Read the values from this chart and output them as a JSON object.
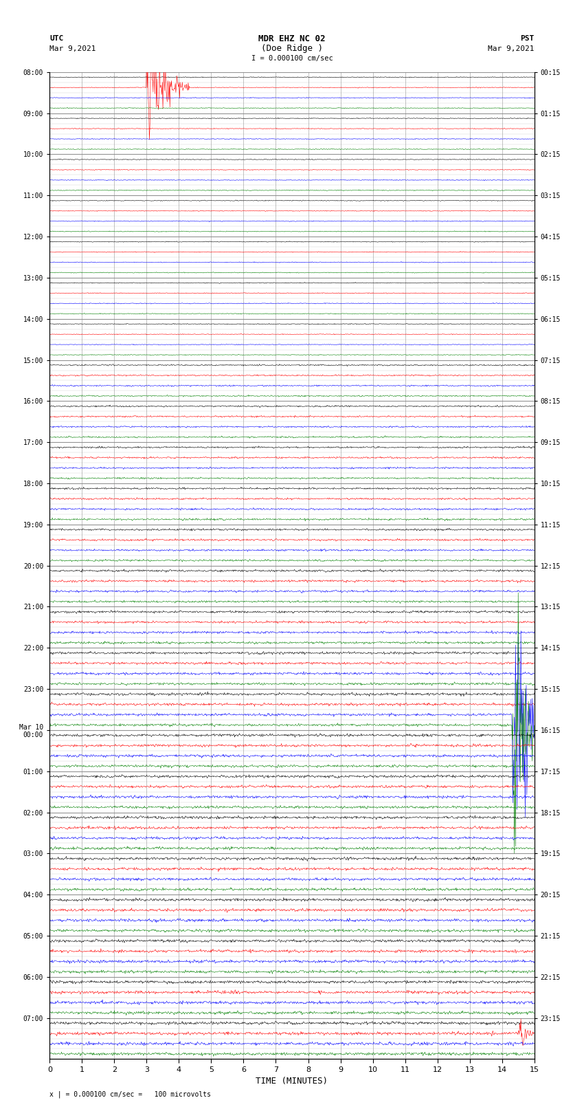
{
  "title_line1": "MDR EHZ NC 02",
  "title_line2": "(Doe Ridge )",
  "title_line3": "I = 0.000100 cm/sec",
  "label_left_top": "UTC",
  "label_left_date": "Mar 9,2021",
  "label_right_top": "PST",
  "label_right_date": "Mar 9,2021",
  "xlabel": "TIME (MINUTES)",
  "footer": "x | = 0.000100 cm/sec =   100 microvolts",
  "utc_times_labeled": [
    "08:00",
    "09:00",
    "10:00",
    "11:00",
    "12:00",
    "13:00",
    "14:00",
    "15:00",
    "16:00",
    "17:00",
    "18:00",
    "19:00",
    "20:00",
    "21:00",
    "22:00",
    "23:00",
    "Mar 10\n00:00",
    "01:00",
    "02:00",
    "03:00",
    "04:00",
    "05:00",
    "06:00",
    "07:00"
  ],
  "pst_times_labeled": [
    "00:15",
    "01:15",
    "02:15",
    "03:15",
    "04:15",
    "05:15",
    "06:15",
    "07:15",
    "08:15",
    "09:15",
    "10:15",
    "11:15",
    "12:15",
    "13:15",
    "14:15",
    "15:15",
    "16:15",
    "17:15",
    "18:15",
    "19:15",
    "20:15",
    "21:15",
    "22:15",
    "23:15"
  ],
  "num_rows": 96,
  "traces_per_hour": 4,
  "num_hours": 24,
  "trace_colors": [
    "black",
    "red",
    "blue",
    "green"
  ],
  "background_color": "white",
  "grid_color": "#888888",
  "noise_seed": 42,
  "fig_width": 8.5,
  "fig_height": 16.13,
  "dpi": 100
}
